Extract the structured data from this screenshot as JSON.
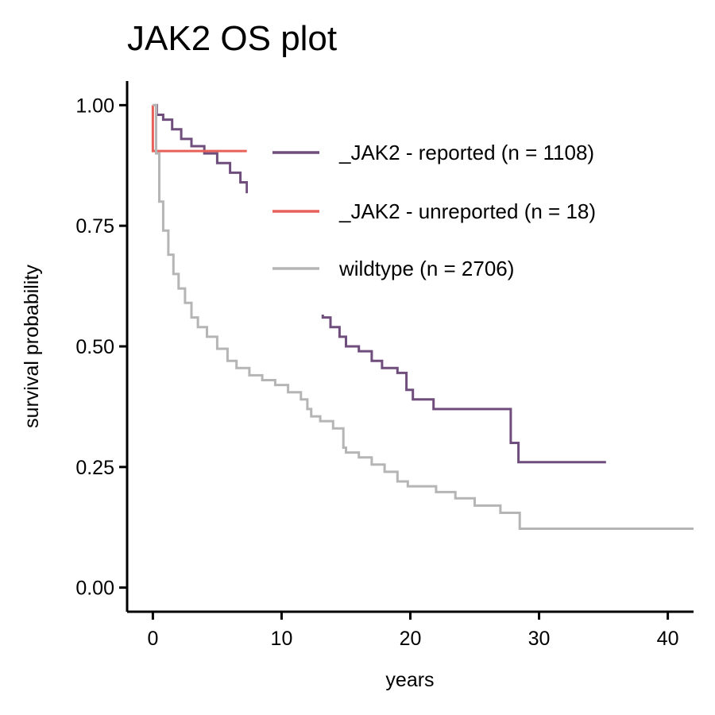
{
  "chart_data": {
    "type": "line",
    "title": "JAK2 OS plot",
    "xlabel": "years",
    "ylabel": "survival probability",
    "xlim": [
      -2,
      42
    ],
    "ylim": [
      -0.05,
      1.05
    ],
    "x_ticks": [
      0,
      10,
      20,
      30,
      40
    ],
    "x_tick_labels": [
      "0",
      "10",
      "20",
      "30",
      "40"
    ],
    "y_ticks": [
      0,
      0.25,
      0.5,
      0.75,
      1.0
    ],
    "y_tick_labels": [
      "0.00",
      "0.25",
      "0.50",
      "0.75",
      "1.00"
    ],
    "grid": false,
    "legend_position": "top-right",
    "series": [
      {
        "name": "_JAK2 - reported (n = 1108)",
        "color": "#6f4d7c",
        "points": [
          [
            0,
            1.0
          ],
          [
            0.3,
            0.98
          ],
          [
            0.8,
            0.97
          ],
          [
            1.5,
            0.95
          ],
          [
            2.2,
            0.93
          ],
          [
            3.0,
            0.915
          ],
          [
            4.0,
            0.9
          ],
          [
            5.0,
            0.88
          ],
          [
            6.0,
            0.86
          ],
          [
            6.8,
            0.84
          ],
          [
            7.3,
            0.82
          ],
          [
            13.2,
            0.56
          ],
          [
            13.8,
            0.54
          ],
          [
            14.5,
            0.52
          ],
          [
            15.0,
            0.5
          ],
          [
            16.0,
            0.49
          ],
          [
            17.0,
            0.47
          ],
          [
            17.8,
            0.455
          ],
          [
            19.0,
            0.445
          ],
          [
            19.7,
            0.445
          ],
          [
            19.7,
            0.41
          ],
          [
            20.2,
            0.39
          ],
          [
            21.8,
            0.37
          ],
          [
            27.8,
            0.37
          ],
          [
            27.8,
            0.3
          ],
          [
            28.4,
            0.3
          ],
          [
            28.4,
            0.26
          ],
          [
            35.2,
            0.26
          ]
        ]
      },
      {
        "name": "_JAK2 - unreported (n = 18)",
        "color": "#e8605a",
        "points": [
          [
            0,
            1.0
          ],
          [
            0,
            0.905
          ],
          [
            7.3,
            0.905
          ]
        ]
      },
      {
        "name": "wildtype (n = 2706)",
        "color": "#b5b5b5",
        "points": [
          [
            0,
            1.0
          ],
          [
            0.25,
            0.9
          ],
          [
            0.5,
            0.8
          ],
          [
            0.8,
            0.74
          ],
          [
            1.2,
            0.69
          ],
          [
            1.6,
            0.65
          ],
          [
            2.0,
            0.62
          ],
          [
            2.5,
            0.59
          ],
          [
            3.0,
            0.56
          ],
          [
            3.5,
            0.54
          ],
          [
            4.2,
            0.52
          ],
          [
            5.0,
            0.495
          ],
          [
            5.8,
            0.47
          ],
          [
            6.5,
            0.455
          ],
          [
            7.5,
            0.44
          ],
          [
            8.5,
            0.43
          ],
          [
            9.5,
            0.42
          ],
          [
            10.5,
            0.405
          ],
          [
            11.5,
            0.39
          ],
          [
            12.0,
            0.37
          ],
          [
            12.3,
            0.355
          ],
          [
            13.0,
            0.345
          ],
          [
            14.0,
            0.33
          ],
          [
            14.8,
            0.32
          ],
          [
            14.8,
            0.29
          ],
          [
            15.0,
            0.28
          ],
          [
            16.0,
            0.27
          ],
          [
            17.0,
            0.255
          ],
          [
            18.0,
            0.24
          ],
          [
            19.0,
            0.22
          ],
          [
            19.8,
            0.21
          ],
          [
            22.0,
            0.21
          ],
          [
            22.0,
            0.198
          ],
          [
            23.5,
            0.185
          ],
          [
            25.0,
            0.17
          ],
          [
            27.0,
            0.155
          ],
          [
            28.5,
            0.14
          ],
          [
            28.5,
            0.122
          ],
          [
            42,
            0.122
          ]
        ]
      }
    ]
  }
}
